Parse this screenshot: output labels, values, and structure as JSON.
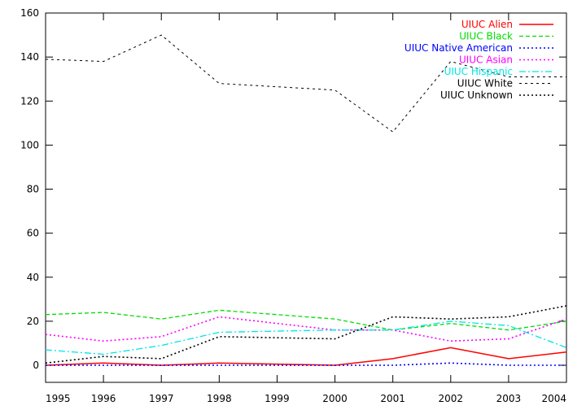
{
  "chart_data": {
    "type": "line",
    "title": "",
    "xlabel": "",
    "ylabel": "",
    "x": [
      1995,
      1996,
      1997,
      1998,
      1999,
      2000,
      2001,
      2002,
      2003,
      2004
    ],
    "xlim": [
      1995,
      2004
    ],
    "ylim": [
      0,
      160
    ],
    "x_ticks": [
      "1995",
      "1996",
      "1997",
      "1998",
      "1999",
      "2000",
      "2001",
      "2002",
      "2003",
      "2004"
    ],
    "y_ticks": [
      "0",
      "20",
      "40",
      "60",
      "80",
      "100",
      "120",
      "140",
      "160"
    ],
    "grid": false,
    "legend_position": "top-right",
    "series": [
      {
        "name": "UIUC Alien",
        "color": "#ff0000",
        "dash": "solid",
        "values": [
          0,
          1,
          0,
          1,
          0.5,
          0,
          3,
          8,
          3,
          6
        ]
      },
      {
        "name": "UIUC Black",
        "color": "#00dd00",
        "dash": "dashed",
        "values": [
          23,
          24,
          21,
          25,
          23,
          21,
          16,
          19,
          16,
          20
        ]
      },
      {
        "name": "UIUC Native American",
        "color": "#0000ff",
        "dash": "dotted",
        "values": [
          0,
          0,
          0,
          0,
          0,
          0,
          0,
          1,
          0,
          0
        ]
      },
      {
        "name": "UIUC Asian",
        "color": "#ff00ff",
        "dash": "dotted",
        "values": [
          14,
          11,
          13,
          22,
          19,
          16,
          16,
          11,
          12,
          21
        ]
      },
      {
        "name": "UIUC Hispanic",
        "color": "#00e5e5",
        "dash": "dashdot",
        "values": [
          7,
          5,
          9,
          15,
          15.5,
          16,
          16,
          20,
          18,
          8
        ]
      },
      {
        "name": "UIUC White",
        "color": "#000000",
        "dash": "finedash",
        "values": [
          139,
          138,
          150,
          128,
          126.5,
          125,
          106,
          138,
          131,
          131
        ]
      },
      {
        "name": "UIUC Unknown",
        "color": "#000000",
        "dash": "dotted",
        "values": [
          1,
          4,
          3,
          13,
          12.5,
          12,
          22,
          21,
          22,
          27
        ]
      }
    ]
  }
}
